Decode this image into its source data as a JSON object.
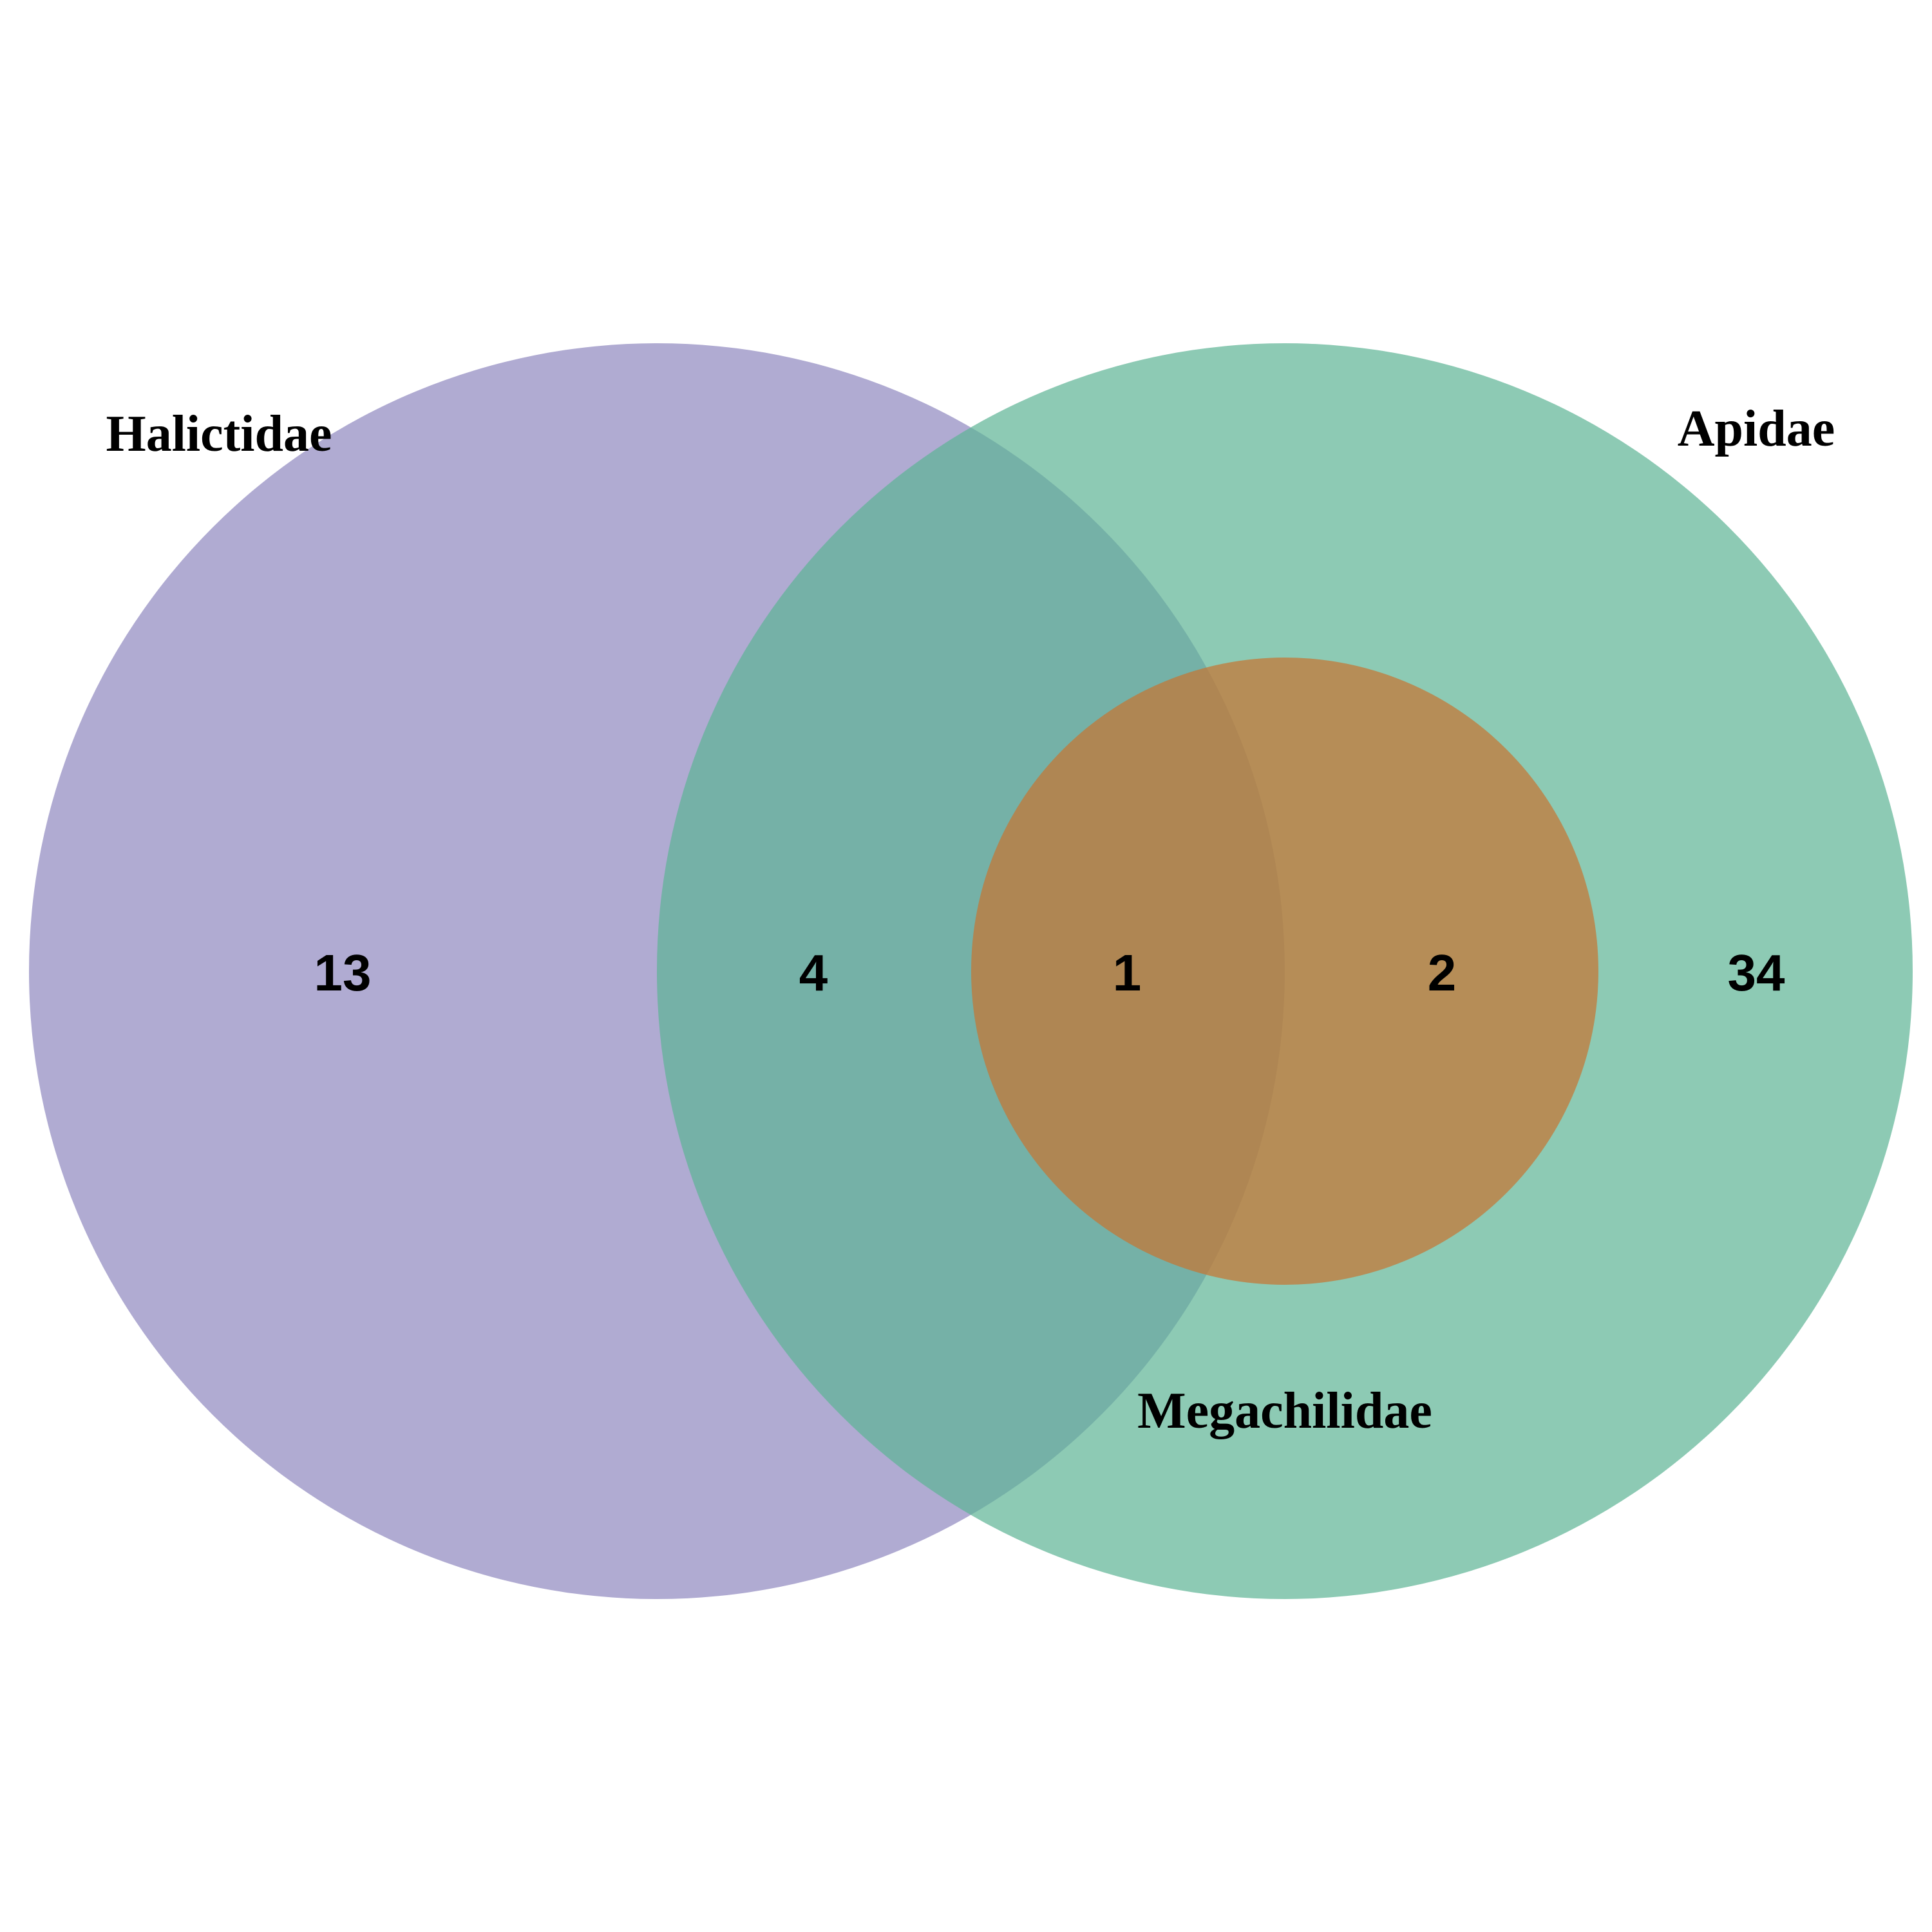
{
  "sets": [
    {
      "key": "halictidae",
      "name": "Halictidae",
      "color": "#8f88bf"
    },
    {
      "key": "apidae",
      "name": "Apidae",
      "color": "#5db394"
    },
    {
      "key": "megachilidae",
      "name": "Megachilidae",
      "color": "#c8732f"
    }
  ],
  "regions": [
    {
      "key": "halictidae-only",
      "sets": [
        "Halictidae"
      ],
      "count": "13"
    },
    {
      "key": "halictidae-apidae",
      "sets": [
        "Halictidae",
        "Apidae"
      ],
      "count": "4"
    },
    {
      "key": "all-three",
      "sets": [
        "Halictidae",
        "Apidae",
        "Megachilidae"
      ],
      "count": "1"
    },
    {
      "key": "apidae-megachilidae",
      "sets": [
        "Apidae",
        "Megachilidae"
      ],
      "count": "2"
    },
    {
      "key": "apidae-only",
      "sets": [
        "Apidae"
      ],
      "count": "34"
    }
  ]
}
